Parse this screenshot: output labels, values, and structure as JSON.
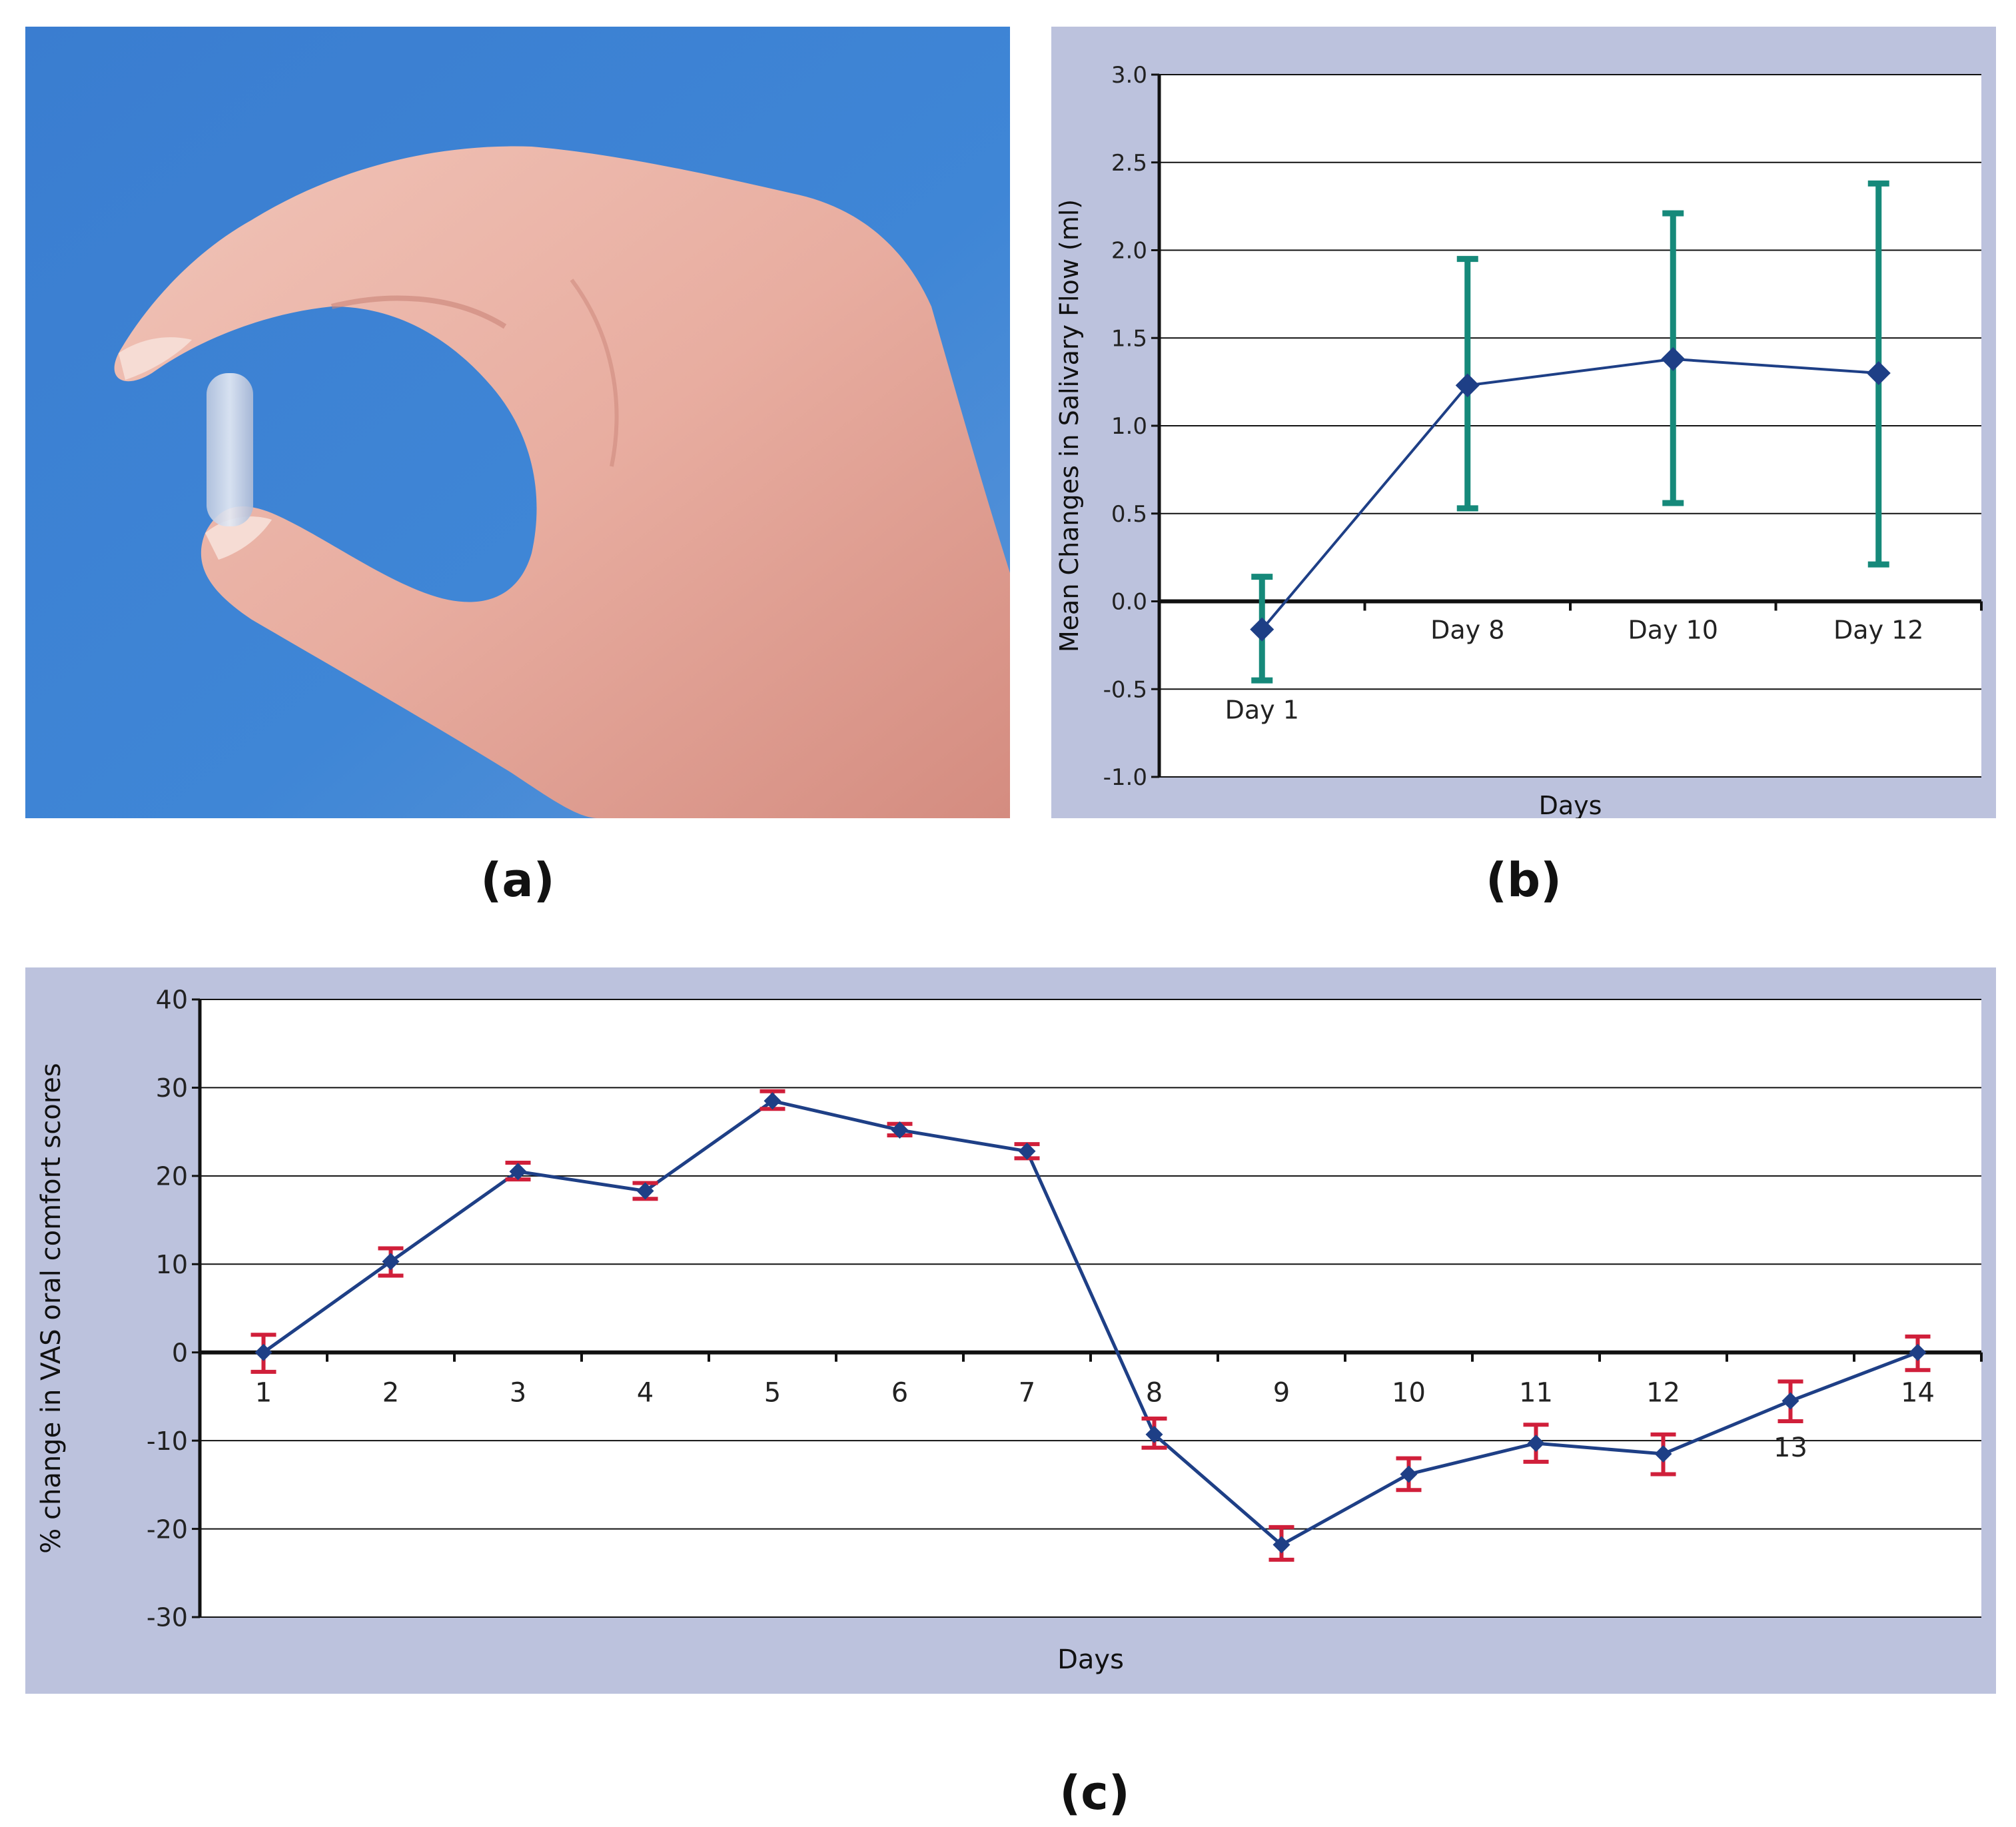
{
  "panel_labels": {
    "a": "(a)",
    "b": "(b)",
    "c": "(c)"
  },
  "photo": {
    "icon": "hand-holding-saliva-insert-photo",
    "background_color": "#3d82d3"
  },
  "colors": {
    "panel_background": "#bcc2dd",
    "plot_background": "#ffffff",
    "line": "#1e3f86",
    "errorbar_b": "#16897a",
    "errorbar_c": "#d01f3a"
  },
  "chart_data": [
    {
      "id": "b",
      "type": "line",
      "xlabel": "Days",
      "ylabel": "Mean Changes in Salivary Flow (ml)",
      "ylim": [
        -1.0,
        3.0
      ],
      "yticks": [
        "3.0",
        "2.5",
        "2.0",
        "1.5",
        "1.0",
        "0.5",
        "0.0",
        "-0.5",
        "-1.0"
      ],
      "categories": [
        "Day 1",
        "Day 8",
        "Day 10",
        "Day 12"
      ],
      "series": [
        {
          "values": [
            -0.16,
            1.23,
            1.38,
            1.3
          ],
          "err_low": [
            -0.45,
            0.53,
            0.56,
            0.21
          ],
          "err_high": [
            0.14,
            1.95,
            2.21,
            2.38
          ]
        }
      ],
      "grid": true
    },
    {
      "id": "c",
      "type": "line",
      "xlabel": "Days",
      "ylabel": "% change in VAS oral comfort scores",
      "ylim": [
        -30,
        40
      ],
      "yticks": [
        "40",
        "30",
        "20",
        "10",
        "0",
        "-10",
        "-20",
        "-30"
      ],
      "categories": [
        "1",
        "2",
        "3",
        "4",
        "5",
        "6",
        "7",
        "8",
        "9",
        "10",
        "11",
        "12",
        "13",
        "14"
      ],
      "series": [
        {
          "values": [
            0,
            10.3,
            20.5,
            18.3,
            28.5,
            25.2,
            22.8,
            -9.3,
            -21.8,
            -13.8,
            -10.3,
            -11.5,
            -5.5,
            0
          ],
          "err_low": [
            -2.2,
            8.7,
            19.6,
            17.4,
            27.6,
            24.6,
            22.0,
            -10.8,
            -23.5,
            -15.6,
            -12.4,
            -13.8,
            -7.8,
            -2.0
          ],
          "err_high": [
            2.0,
            11.8,
            21.5,
            19.2,
            29.6,
            25.9,
            23.6,
            -7.5,
            -19.8,
            -12.0,
            -8.2,
            -9.3,
            -3.3,
            1.8
          ]
        }
      ],
      "grid": true
    }
  ]
}
